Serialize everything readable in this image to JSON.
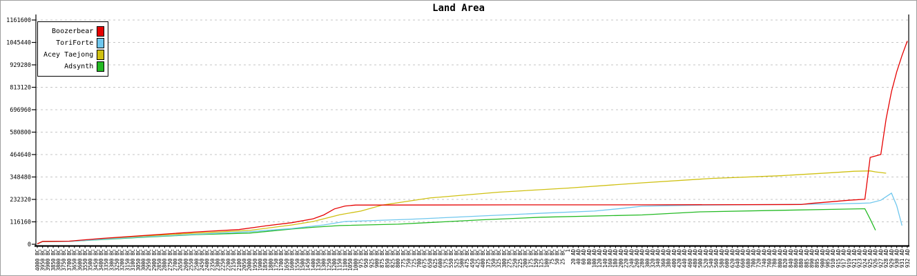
{
  "chart_data": {
    "type": "line",
    "title": "Land Area",
    "xlabel": "",
    "ylabel": "",
    "ylim": [
      0,
      1161600
    ],
    "ytick_interval": 116160,
    "ytick_labels": [
      "0",
      "116160",
      "232320",
      "348480",
      "464640",
      "580800",
      "696960",
      "813120",
      "929280",
      "1045440",
      "1161600"
    ],
    "grid": "horizontal-dashed",
    "legend_position": "top-left",
    "x_axis_note": "timeline labels rotated 90deg, BC years step 50 then 25, AD years step 20 then 5/2/1",
    "categories": [
      "4000 BC",
      "3950 BC",
      "3900 BC",
      "3850 BC",
      "3800 BC",
      "3750 BC",
      "3700 BC",
      "3650 BC",
      "3600 BC",
      "3550 BC",
      "3500 BC",
      "3450 BC",
      "3400 BC",
      "3350 BC",
      "3300 BC",
      "3250 BC",
      "3200 BC",
      "3150 BC",
      "3100 BC",
      "3050 BC",
      "3000 BC",
      "2950 BC",
      "2900 BC",
      "2850 BC",
      "2800 BC",
      "2750 BC",
      "2700 BC",
      "2650 BC",
      "2600 BC",
      "2550 BC",
      "2500 BC",
      "2450 BC",
      "2400 BC",
      "2350 BC",
      "2300 BC",
      "2250 BC",
      "2200 BC",
      "2150 BC",
      "2100 BC",
      "2050 BC",
      "2000 BC",
      "1950 BC",
      "1900 BC",
      "1850 BC",
      "1800 BC",
      "1750 BC",
      "1700 BC",
      "1650 BC",
      "1600 BC",
      "1550 BC",
      "1500 BC",
      "1450 BC",
      "1400 BC",
      "1350 BC",
      "1300 BC",
      "1250 BC",
      "1200 BC",
      "1150 BC",
      "1100 BC",
      "1050 BC",
      "1000 BC",
      "975 BC",
      "950 BC",
      "925 BC",
      "900 BC",
      "875 BC",
      "850 BC",
      "825 BC",
      "800 BC",
      "775 BC",
      "750 BC",
      "725 BC",
      "700 BC",
      "675 BC",
      "650 BC",
      "625 BC",
      "600 BC",
      "575 BC",
      "550 BC",
      "525 BC",
      "500 BC",
      "475 BC",
      "450 BC",
      "425 BC",
      "400 BC",
      "375 BC",
      "350 BC",
      "325 BC",
      "300 BC",
      "275 BC",
      "250 BC",
      "225 BC",
      "200 BC",
      "175 BC",
      "150 BC",
      "125 BC",
      "100 BC",
      "75 BC",
      "50 BC",
      "25 BC",
      "1",
      "20 AD",
      "40 AD",
      "60 AD",
      "80 AD",
      "100 AD",
      "120 AD",
      "140 AD",
      "160 AD",
      "180 AD",
      "200 AD",
      "220 AD",
      "240 AD",
      "260 AD",
      "280 AD",
      "300 AD",
      "320 AD",
      "340 AD",
      "360 AD",
      "380 AD",
      "400 AD",
      "420 AD",
      "440 AD",
      "460 AD",
      "480 AD",
      "500 AD",
      "520 AD",
      "540 AD",
      "560 AD",
      "580 AD",
      "600 AD",
      "620 AD",
      "640 AD",
      "660 AD",
      "680 AD",
      "700 AD",
      "720 AD",
      "740 AD",
      "760 AD",
      "780 AD",
      "800 AD",
      "820 AD",
      "840 AD",
      "860 AD",
      "880 AD",
      "885 AD",
      "890 AD",
      "895 AD",
      "900 AD",
      "905 AD",
      "910 AD",
      "915 AD",
      "917 AD",
      "919 AD",
      "921 AD",
      "923 AD",
      "924 AD",
      "925 AD",
      "926 AD",
      "927 AD",
      "928 AD",
      "929 AD",
      "930 AD",
      "931 AD",
      "932 AD"
    ],
    "series": [
      {
        "name": "Boozerbear",
        "color": "#e60000",
        "points": [
          [
            0,
            2000
          ],
          [
            1,
            15000
          ],
          [
            6,
            16000
          ],
          [
            12,
            30000
          ],
          [
            20,
            45000
          ],
          [
            30,
            64000
          ],
          [
            38,
            76000
          ],
          [
            43,
            95000
          ],
          [
            48,
            112000
          ],
          [
            52,
            132000
          ],
          [
            54,
            152000
          ],
          [
            56,
            183000
          ],
          [
            58,
            198000
          ],
          [
            60,
            203000
          ],
          [
            90,
            204000
          ],
          [
            114,
            204000
          ],
          [
            144,
            206000
          ],
          [
            146,
            212000
          ],
          [
            150,
            221000
          ],
          [
            153,
            228000
          ],
          [
            156,
            233000
          ],
          [
            157,
            450000
          ],
          [
            159,
            465000
          ],
          [
            160,
            650000
          ],
          [
            161,
            790000
          ],
          [
            162,
            893000
          ],
          [
            163,
            978000
          ],
          [
            164,
            1053000
          ]
        ]
      },
      {
        "name": "ToriForte",
        "color": "#6fc7ee",
        "points": [
          [
            0,
            2000
          ],
          [
            1,
            14000
          ],
          [
            6,
            15000
          ],
          [
            12,
            25000
          ],
          [
            20,
            38000
          ],
          [
            30,
            52000
          ],
          [
            40,
            65000
          ],
          [
            48,
            82000
          ],
          [
            54,
            100000
          ],
          [
            58,
            118000
          ],
          [
            70,
            129000
          ],
          [
            84,
            147000
          ],
          [
            96,
            162000
          ],
          [
            105,
            172000
          ],
          [
            110,
            185000
          ],
          [
            114,
            197000
          ],
          [
            125,
            203000
          ],
          [
            140,
            206000
          ],
          [
            150,
            209000
          ],
          [
            155,
            212000
          ],
          [
            157,
            214000
          ],
          [
            159,
            228000
          ],
          [
            161,
            265000
          ],
          [
            162,
            200000
          ],
          [
            163,
            97000
          ]
        ]
      },
      {
        "name": "Acey Taejong",
        "color": "#cfc011",
        "points": [
          [
            0,
            2000
          ],
          [
            1,
            14000
          ],
          [
            6,
            15000
          ],
          [
            12,
            28000
          ],
          [
            20,
            42000
          ],
          [
            30,
            58000
          ],
          [
            40,
            72000
          ],
          [
            48,
            100000
          ],
          [
            52,
            118000
          ],
          [
            57,
            153000
          ],
          [
            61,
            172000
          ],
          [
            65,
            203000
          ],
          [
            74,
            240000
          ],
          [
            87,
            270000
          ],
          [
            100,
            291000
          ],
          [
            114,
            318000
          ],
          [
            127,
            341000
          ],
          [
            140,
            355000
          ],
          [
            150,
            371000
          ],
          [
            154,
            378000
          ],
          [
            157,
            380000
          ],
          [
            158,
            375000
          ],
          [
            160,
            368000
          ]
        ]
      },
      {
        "name": "Adsynth",
        "color": "#23ba23",
        "points": [
          [
            0,
            2000
          ],
          [
            1,
            14000
          ],
          [
            6,
            15000
          ],
          [
            12,
            24000
          ],
          [
            20,
            36000
          ],
          [
            30,
            50000
          ],
          [
            40,
            58000
          ],
          [
            48,
            79000
          ],
          [
            52,
            88000
          ],
          [
            57,
            97000
          ],
          [
            68,
            104000
          ],
          [
            84,
            127000
          ],
          [
            95,
            140000
          ],
          [
            114,
            152000
          ],
          [
            125,
            168000
          ],
          [
            140,
            176000
          ],
          [
            150,
            181000
          ],
          [
            156,
            184000
          ],
          [
            157,
            130000
          ],
          [
            158,
            73000
          ]
        ]
      }
    ],
    "colors": {
      "axis": "#000000",
      "gridline": "#c4c4c4",
      "background": "#ffffff"
    }
  }
}
